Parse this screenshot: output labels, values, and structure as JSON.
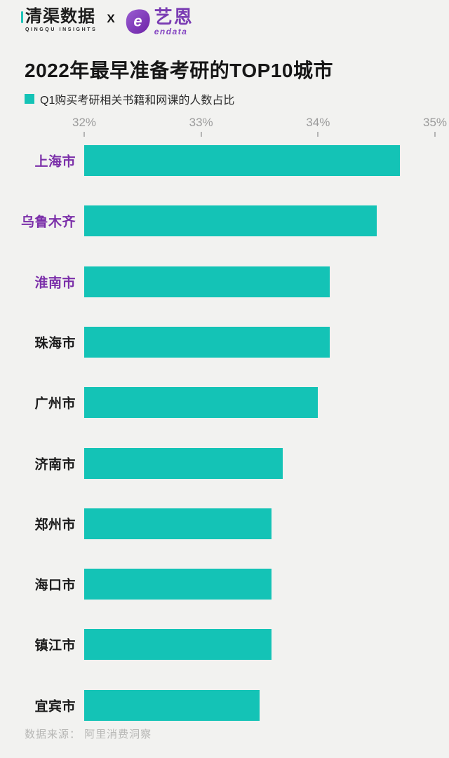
{
  "header": {
    "qingqu_logo_text": "清渠数据",
    "qingqu_logo_subtext": "QINGQU INSIGHTS",
    "separator": "X",
    "endata_logo_text": "艺恩",
    "endata_logo_subtext": "endata"
  },
  "title": "2022年最早准备考研的TOP10城市",
  "legend": {
    "label": "Q1购买考研相关书籍和网课的人数占比"
  },
  "footer": {
    "source": "数据来源： 阿里消费洞察"
  },
  "colors": {
    "background": "#f2f2f0",
    "bar": "#14c3b6",
    "highlight_label": "#7b2fa9",
    "label": "#1c1c1c",
    "axis_text": "#9b9b9b",
    "endata_purple": "#7a3cb3",
    "qingqu_accent": "#1ec3b8"
  },
  "chart_data": {
    "type": "bar",
    "orientation": "horizontal",
    "title": "2022年最早准备考研的TOP10城市",
    "series_label": "Q1购买考研相关书籍和网课的人数占比",
    "categories": [
      "上海市",
      "乌鲁木齐",
      "淮南市",
      "珠海市",
      "广州市",
      "济南市",
      "郑州市",
      "海口市",
      "镇江市",
      "宜宾市"
    ],
    "values": [
      34.7,
      34.5,
      34.1,
      34.1,
      34.0,
      33.7,
      33.6,
      33.6,
      33.6,
      33.5
    ],
    "unit": "%",
    "xlim": [
      32,
      35
    ],
    "xticks": [
      "32%",
      "33%",
      "34%",
      "35%"
    ],
    "xtick_values": [
      32,
      33,
      34,
      35
    ],
    "highlighted_categories": [
      "上海市",
      "乌鲁木齐",
      "淮南市"
    ],
    "grid": false,
    "legend_position": "top-left",
    "source": "数据来源： 阿里消费洞察"
  }
}
